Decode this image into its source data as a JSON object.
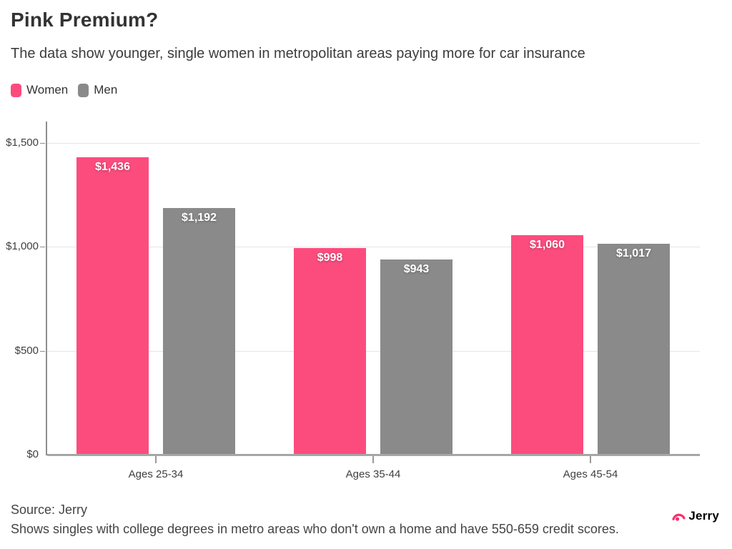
{
  "header": {
    "title": "Pink Premium?",
    "subtitle": "The data show younger, single women in metropolitan areas paying more for car insurance"
  },
  "chart_data": {
    "type": "bar",
    "title": "Pink Premium?",
    "subtitle": "The data show younger, single women in metropolitan areas paying more for car insurance",
    "categories": [
      "Ages 25-34",
      "Ages 35-44",
      "Ages 45-54"
    ],
    "series": [
      {
        "name": "Women",
        "color": "#fc4c7e",
        "values": [
          1436,
          998,
          1060
        ],
        "labels": [
          "$1,436",
          "$998",
          "$1,060"
        ]
      },
      {
        "name": "Men",
        "color": "#8a8a8a",
        "values": [
          1192,
          943,
          1017
        ],
        "labels": [
          "$1,192",
          "$943",
          "$1,017"
        ]
      }
    ],
    "y_axis": {
      "ticks": [
        0,
        500,
        1000,
        1500
      ],
      "tick_labels": [
        "$0",
        "$500",
        "$1,000",
        "$1,500"
      ],
      "range": [
        0,
        1606
      ],
      "unit": "USD"
    },
    "grid": true,
    "legend_position": "top-left"
  },
  "footer": {
    "source": "Source: Jerry",
    "note": "Shows singles with college degrees in metro areas who don't own a home and have 550-659 credit scores.",
    "logo_text": "Jerry",
    "logo_color": "#fb2e6f"
  }
}
